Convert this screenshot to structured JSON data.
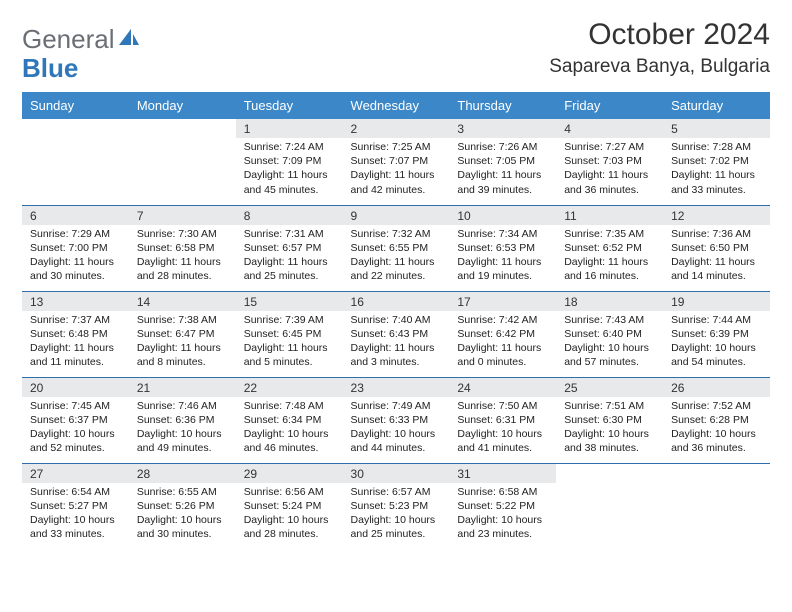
{
  "logo": {
    "text1": "General",
    "text2": "Blue"
  },
  "title": "October 2024",
  "location": "Sapareva Banya, Bulgaria",
  "colors": {
    "header_bg": "#3b87c8",
    "daynum_bg": "#e8e9ea",
    "row_border": "#2f6ea8",
    "logo_gray": "#6a6f76",
    "logo_blue": "#2f77b8"
  },
  "weekdays": [
    "Sunday",
    "Monday",
    "Tuesday",
    "Wednesday",
    "Thursday",
    "Friday",
    "Saturday"
  ],
  "weeks": [
    [
      null,
      null,
      {
        "n": "1",
        "sr": "Sunrise: 7:24 AM",
        "ss": "Sunset: 7:09 PM",
        "dl": "Daylight: 11 hours and 45 minutes."
      },
      {
        "n": "2",
        "sr": "Sunrise: 7:25 AM",
        "ss": "Sunset: 7:07 PM",
        "dl": "Daylight: 11 hours and 42 minutes."
      },
      {
        "n": "3",
        "sr": "Sunrise: 7:26 AM",
        "ss": "Sunset: 7:05 PM",
        "dl": "Daylight: 11 hours and 39 minutes."
      },
      {
        "n": "4",
        "sr": "Sunrise: 7:27 AM",
        "ss": "Sunset: 7:03 PM",
        "dl": "Daylight: 11 hours and 36 minutes."
      },
      {
        "n": "5",
        "sr": "Sunrise: 7:28 AM",
        "ss": "Sunset: 7:02 PM",
        "dl": "Daylight: 11 hours and 33 minutes."
      }
    ],
    [
      {
        "n": "6",
        "sr": "Sunrise: 7:29 AM",
        "ss": "Sunset: 7:00 PM",
        "dl": "Daylight: 11 hours and 30 minutes."
      },
      {
        "n": "7",
        "sr": "Sunrise: 7:30 AM",
        "ss": "Sunset: 6:58 PM",
        "dl": "Daylight: 11 hours and 28 minutes."
      },
      {
        "n": "8",
        "sr": "Sunrise: 7:31 AM",
        "ss": "Sunset: 6:57 PM",
        "dl": "Daylight: 11 hours and 25 minutes."
      },
      {
        "n": "9",
        "sr": "Sunrise: 7:32 AM",
        "ss": "Sunset: 6:55 PM",
        "dl": "Daylight: 11 hours and 22 minutes."
      },
      {
        "n": "10",
        "sr": "Sunrise: 7:34 AM",
        "ss": "Sunset: 6:53 PM",
        "dl": "Daylight: 11 hours and 19 minutes."
      },
      {
        "n": "11",
        "sr": "Sunrise: 7:35 AM",
        "ss": "Sunset: 6:52 PM",
        "dl": "Daylight: 11 hours and 16 minutes."
      },
      {
        "n": "12",
        "sr": "Sunrise: 7:36 AM",
        "ss": "Sunset: 6:50 PM",
        "dl": "Daylight: 11 hours and 14 minutes."
      }
    ],
    [
      {
        "n": "13",
        "sr": "Sunrise: 7:37 AM",
        "ss": "Sunset: 6:48 PM",
        "dl": "Daylight: 11 hours and 11 minutes."
      },
      {
        "n": "14",
        "sr": "Sunrise: 7:38 AM",
        "ss": "Sunset: 6:47 PM",
        "dl": "Daylight: 11 hours and 8 minutes."
      },
      {
        "n": "15",
        "sr": "Sunrise: 7:39 AM",
        "ss": "Sunset: 6:45 PM",
        "dl": "Daylight: 11 hours and 5 minutes."
      },
      {
        "n": "16",
        "sr": "Sunrise: 7:40 AM",
        "ss": "Sunset: 6:43 PM",
        "dl": "Daylight: 11 hours and 3 minutes."
      },
      {
        "n": "17",
        "sr": "Sunrise: 7:42 AM",
        "ss": "Sunset: 6:42 PM",
        "dl": "Daylight: 11 hours and 0 minutes."
      },
      {
        "n": "18",
        "sr": "Sunrise: 7:43 AM",
        "ss": "Sunset: 6:40 PM",
        "dl": "Daylight: 10 hours and 57 minutes."
      },
      {
        "n": "19",
        "sr": "Sunrise: 7:44 AM",
        "ss": "Sunset: 6:39 PM",
        "dl": "Daylight: 10 hours and 54 minutes."
      }
    ],
    [
      {
        "n": "20",
        "sr": "Sunrise: 7:45 AM",
        "ss": "Sunset: 6:37 PM",
        "dl": "Daylight: 10 hours and 52 minutes."
      },
      {
        "n": "21",
        "sr": "Sunrise: 7:46 AM",
        "ss": "Sunset: 6:36 PM",
        "dl": "Daylight: 10 hours and 49 minutes."
      },
      {
        "n": "22",
        "sr": "Sunrise: 7:48 AM",
        "ss": "Sunset: 6:34 PM",
        "dl": "Daylight: 10 hours and 46 minutes."
      },
      {
        "n": "23",
        "sr": "Sunrise: 7:49 AM",
        "ss": "Sunset: 6:33 PM",
        "dl": "Daylight: 10 hours and 44 minutes."
      },
      {
        "n": "24",
        "sr": "Sunrise: 7:50 AM",
        "ss": "Sunset: 6:31 PM",
        "dl": "Daylight: 10 hours and 41 minutes."
      },
      {
        "n": "25",
        "sr": "Sunrise: 7:51 AM",
        "ss": "Sunset: 6:30 PM",
        "dl": "Daylight: 10 hours and 38 minutes."
      },
      {
        "n": "26",
        "sr": "Sunrise: 7:52 AM",
        "ss": "Sunset: 6:28 PM",
        "dl": "Daylight: 10 hours and 36 minutes."
      }
    ],
    [
      {
        "n": "27",
        "sr": "Sunrise: 6:54 AM",
        "ss": "Sunset: 5:27 PM",
        "dl": "Daylight: 10 hours and 33 minutes."
      },
      {
        "n": "28",
        "sr": "Sunrise: 6:55 AM",
        "ss": "Sunset: 5:26 PM",
        "dl": "Daylight: 10 hours and 30 minutes."
      },
      {
        "n": "29",
        "sr": "Sunrise: 6:56 AM",
        "ss": "Sunset: 5:24 PM",
        "dl": "Daylight: 10 hours and 28 minutes."
      },
      {
        "n": "30",
        "sr": "Sunrise: 6:57 AM",
        "ss": "Sunset: 5:23 PM",
        "dl": "Daylight: 10 hours and 25 minutes."
      },
      {
        "n": "31",
        "sr": "Sunrise: 6:58 AM",
        "ss": "Sunset: 5:22 PM",
        "dl": "Daylight: 10 hours and 23 minutes."
      },
      null,
      null
    ]
  ]
}
